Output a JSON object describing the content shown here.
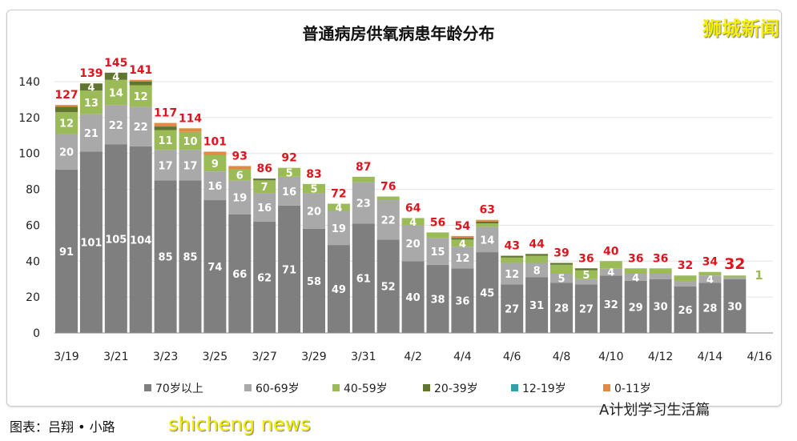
{
  "watermarks": {
    "top_right": "狮城新闻",
    "bottom_left": "shicheng news",
    "bottom_right": "A计划学习生活篇"
  },
  "credit": "图表：吕翔 • 小路",
  "chart_data": {
    "type": "bar",
    "stacked": true,
    "title": "普通病房供氧病患年龄分布",
    "xlabel": "",
    "ylabel": "",
    "ylim": [
      0,
      140
    ],
    "yticks": [
      0,
      20,
      40,
      60,
      80,
      100,
      120,
      140
    ],
    "grid": true,
    "legend": "bottom",
    "categories": [
      "3/19",
      "3/20",
      "3/21",
      "3/22",
      "3/23",
      "3/24",
      "3/25",
      "3/26",
      "3/27",
      "3/28",
      "3/29",
      "3/30",
      "3/31",
      "4/1",
      "4/2",
      "4/3",
      "4/4",
      "4/5",
      "4/6",
      "4/7",
      "4/8",
      "4/9",
      "4/10",
      "4/11",
      "4/12",
      "4/13",
      "4/14",
      "4/15"
    ],
    "xtick_labels": [
      "3/19",
      "3/21",
      "3/23",
      "3/25",
      "3/27",
      "3/29",
      "3/31",
      "4/2",
      "4/4",
      "4/6",
      "4/8",
      "4/10",
      "4/12",
      "4/14",
      "4/16"
    ],
    "totals": [
      127,
      139,
      145,
      141,
      117,
      114,
      101,
      93,
      86,
      92,
      83,
      72,
      87,
      76,
      64,
      56,
      54,
      63,
      43,
      44,
      39,
      36,
      40,
      36,
      36,
      32,
      34,
      32
    ],
    "series": [
      {
        "name": "70岁以上",
        "color": "#7f7f7f",
        "values": [
          91,
          101,
          105,
          104,
          85,
          85,
          74,
          66,
          62,
          71,
          58,
          49,
          61,
          52,
          40,
          38,
          36,
          45,
          27,
          31,
          28,
          27,
          32,
          29,
          30,
          26,
          28,
          30
        ]
      },
      {
        "name": "60-69岁",
        "color": "#a9a9a9",
        "values": [
          20,
          21,
          22,
          22,
          17,
          17,
          16,
          19,
          16,
          16,
          20,
          19,
          23,
          22,
          20,
          15,
          12,
          14,
          12,
          8,
          5,
          3,
          4,
          4,
          3,
          3,
          4,
          1
        ]
      },
      {
        "name": "40-59岁",
        "color": "#9bbb59",
        "values": [
          12,
          13,
          14,
          12,
          11,
          10,
          9,
          6,
          7,
          5,
          5,
          4,
          3,
          2,
          4,
          3,
          4,
          2,
          3,
          4,
          5,
          5,
          4,
          3,
          3,
          3,
          2,
          1
        ]
      },
      {
        "name": "20-39岁",
        "color": "#5f7530",
        "values": [
          3,
          4,
          4,
          2,
          2,
          0,
          0,
          0,
          1,
          0,
          0,
          0,
          0,
          0,
          0,
          0,
          1,
          1,
          1,
          1,
          1,
          1,
          0,
          0,
          0,
          0,
          0,
          0
        ]
      },
      {
        "name": "12-19岁",
        "color": "#31a0aa",
        "values": [
          0,
          0,
          0,
          0,
          0,
          0,
          0,
          0,
          0,
          0,
          0,
          0,
          0,
          0,
          0,
          0,
          0,
          0,
          0,
          0,
          0,
          0,
          0,
          0,
          0,
          0,
          0,
          0
        ]
      },
      {
        "name": "0-11岁",
        "color": "#e08a45",
        "values": [
          1,
          0,
          0,
          1,
          2,
          2,
          2,
          2,
          0,
          0,
          0,
          0,
          0,
          0,
          0,
          0,
          1,
          1,
          0,
          0,
          0,
          0,
          0,
          0,
          0,
          0,
          0,
          0
        ]
      }
    ],
    "colors": {
      "total_label": "#e0141e",
      "label": "#ffffff",
      "grid": "#e3e3e3"
    }
  }
}
